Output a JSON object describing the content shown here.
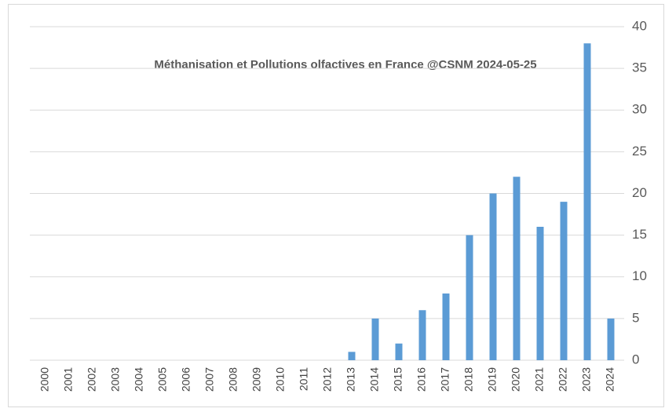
{
  "chart_data": {
    "type": "bar",
    "title": "Méthanisation et Pollutions olfactives en France @CSNM 2024-05-25",
    "categories": [
      "2000",
      "2001",
      "2002",
      "2003",
      "2004",
      "2005",
      "2006",
      "2007",
      "2008",
      "2009",
      "2010",
      "2011",
      "2012",
      "2013",
      "2014",
      "2015",
      "2016",
      "2017",
      "2018",
      "2019",
      "2020",
      "2021",
      "2022",
      "2023",
      "2024"
    ],
    "values": [
      0,
      0,
      0,
      0,
      0,
      0,
      0,
      0,
      0,
      0,
      0,
      0,
      0,
      1,
      5,
      2,
      6,
      8,
      15,
      20,
      22,
      16,
      19,
      38,
      5
    ],
    "color": "#5b9bd5",
    "ylim": [
      0,
      40
    ],
    "yticks": [
      0,
      5,
      10,
      15,
      20,
      25,
      30,
      35,
      40
    ],
    "y_axis_side": "right",
    "grid": true
  }
}
